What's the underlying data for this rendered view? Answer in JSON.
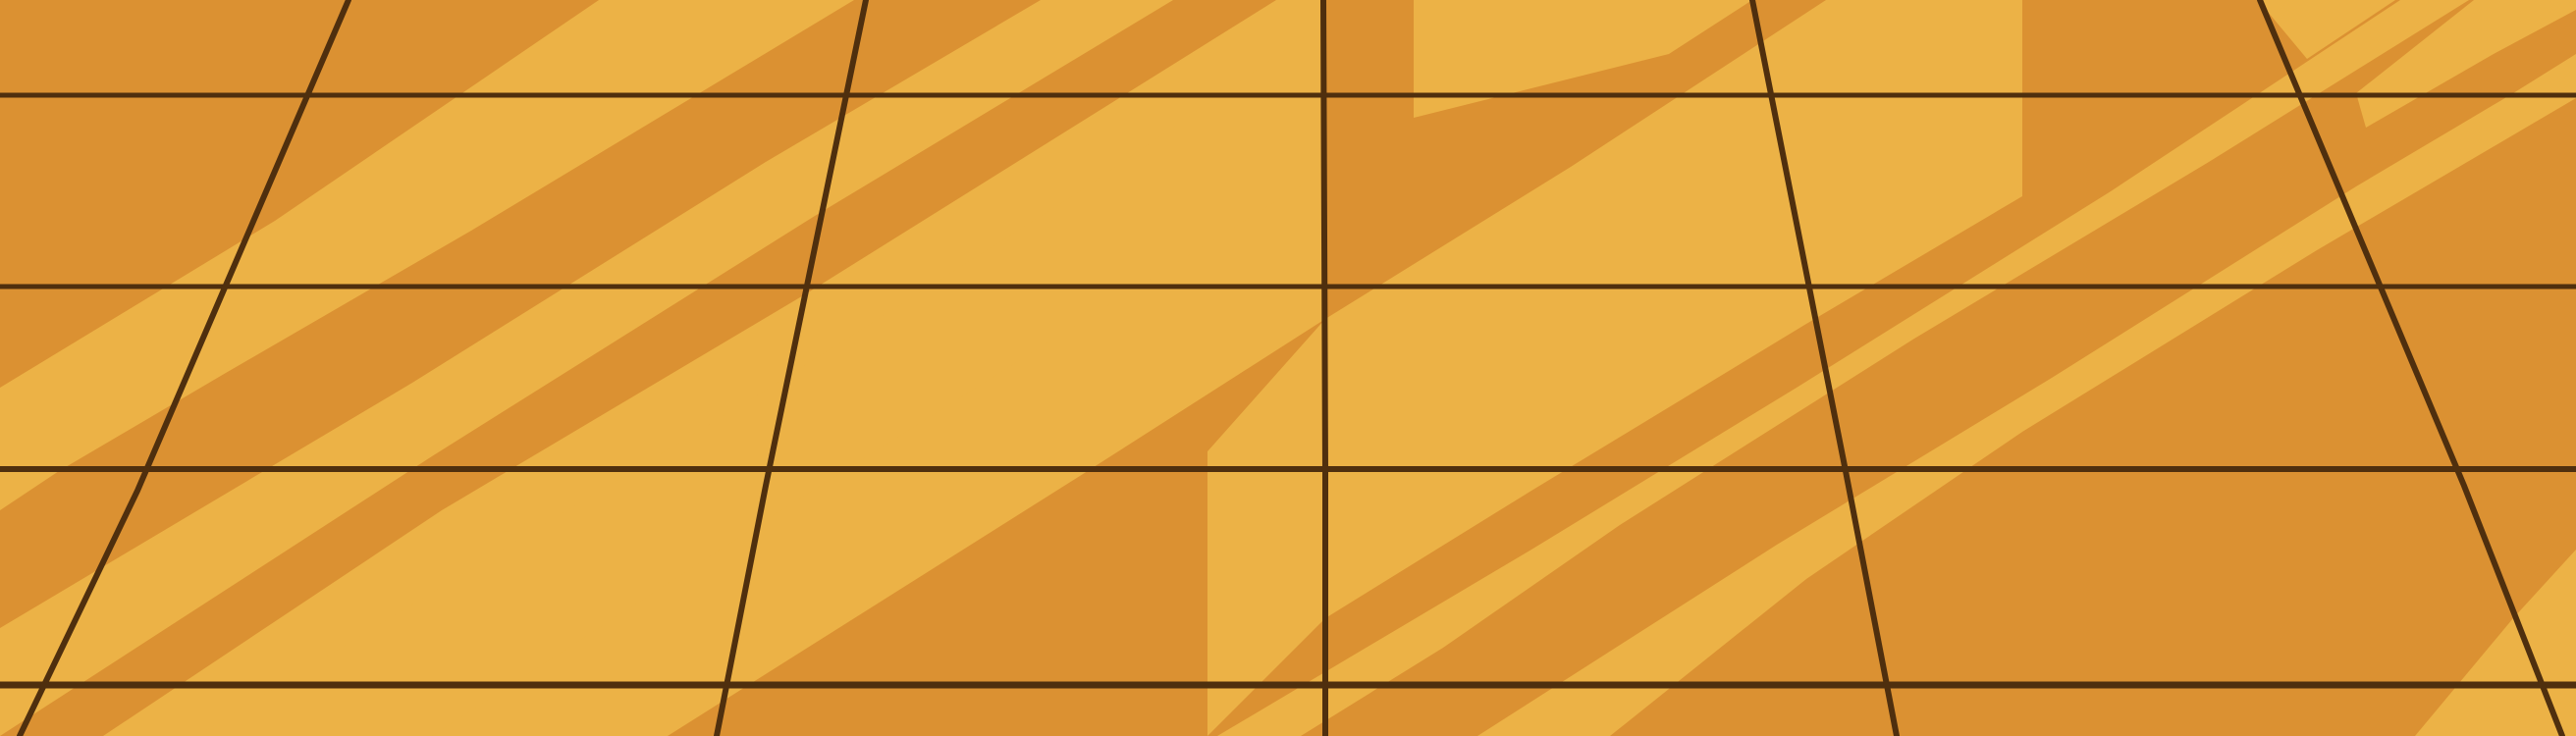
{
  "scene": {
    "subject": "wooden-floor-tiles",
    "colors": {
      "base": "#DB9132",
      "highlight": "#ECB246",
      "grout": "#4F2F0E"
    }
  }
}
